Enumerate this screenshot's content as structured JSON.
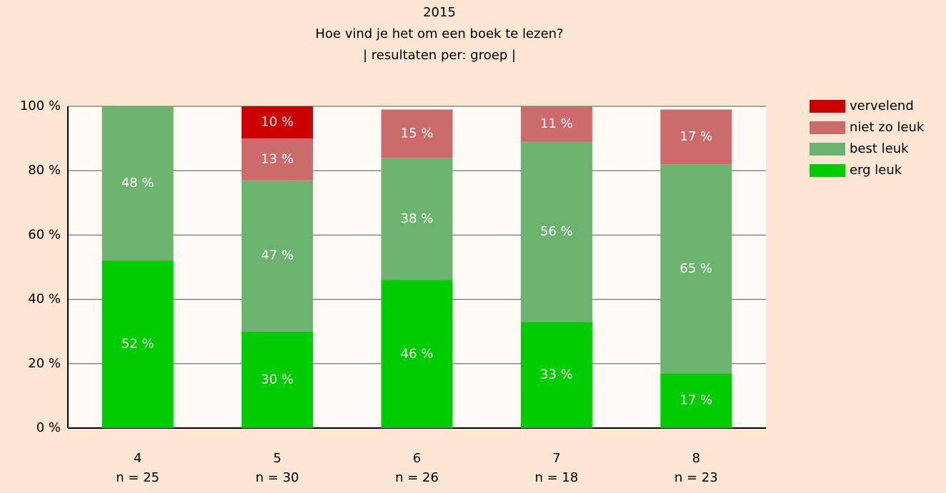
{
  "chart_data": {
    "type": "stacked_bar",
    "title_lines": [
      "2015",
      "Hoe vind je het om een boek te lezen?",
      "| resultaten per: groep |"
    ],
    "categories": [
      "4",
      "5",
      "6",
      "7",
      "8"
    ],
    "n_labels": [
      "n = 25",
      "n = 30",
      "n = 26",
      "n = 18",
      "n = 23"
    ],
    "series": [
      {
        "name": "erg leuk",
        "color": "#00cc00",
        "values": [
          52,
          30,
          46,
          33,
          17
        ],
        "value_labels": [
          "52 %",
          "30 %",
          "46 %",
          "33 %",
          "17 %"
        ]
      },
      {
        "name": "best leuk",
        "color": "#6bb36f",
        "values": [
          48,
          47,
          38,
          56,
          65
        ],
        "value_labels": [
          "48 %",
          "47 %",
          "38 %",
          "56 %",
          "65 %"
        ]
      },
      {
        "name": "niet zo leuk",
        "color": "#cc6b6b",
        "values": [
          null,
          13,
          15,
          11,
          17
        ],
        "value_labels": [
          null,
          "13 %",
          "15 %",
          "11 %",
          "17 %"
        ]
      },
      {
        "name": "vervelend",
        "color": "#cc0000",
        "values": [
          null,
          10,
          null,
          null,
          null
        ],
        "value_labels": [
          null,
          "10 %",
          null,
          null,
          null
        ]
      }
    ],
    "ylim": [
      0,
      100
    ],
    "yticks": [
      {
        "value": 0,
        "label": "0 %"
      },
      {
        "value": 20,
        "label": "20 %"
      },
      {
        "value": 40,
        "label": "40 %"
      },
      {
        "value": 60,
        "label": "60 %"
      },
      {
        "value": 80,
        "label": "80 %"
      },
      {
        "value": 100,
        "label": "100 %"
      }
    ],
    "grid": true,
    "legend": "right"
  }
}
